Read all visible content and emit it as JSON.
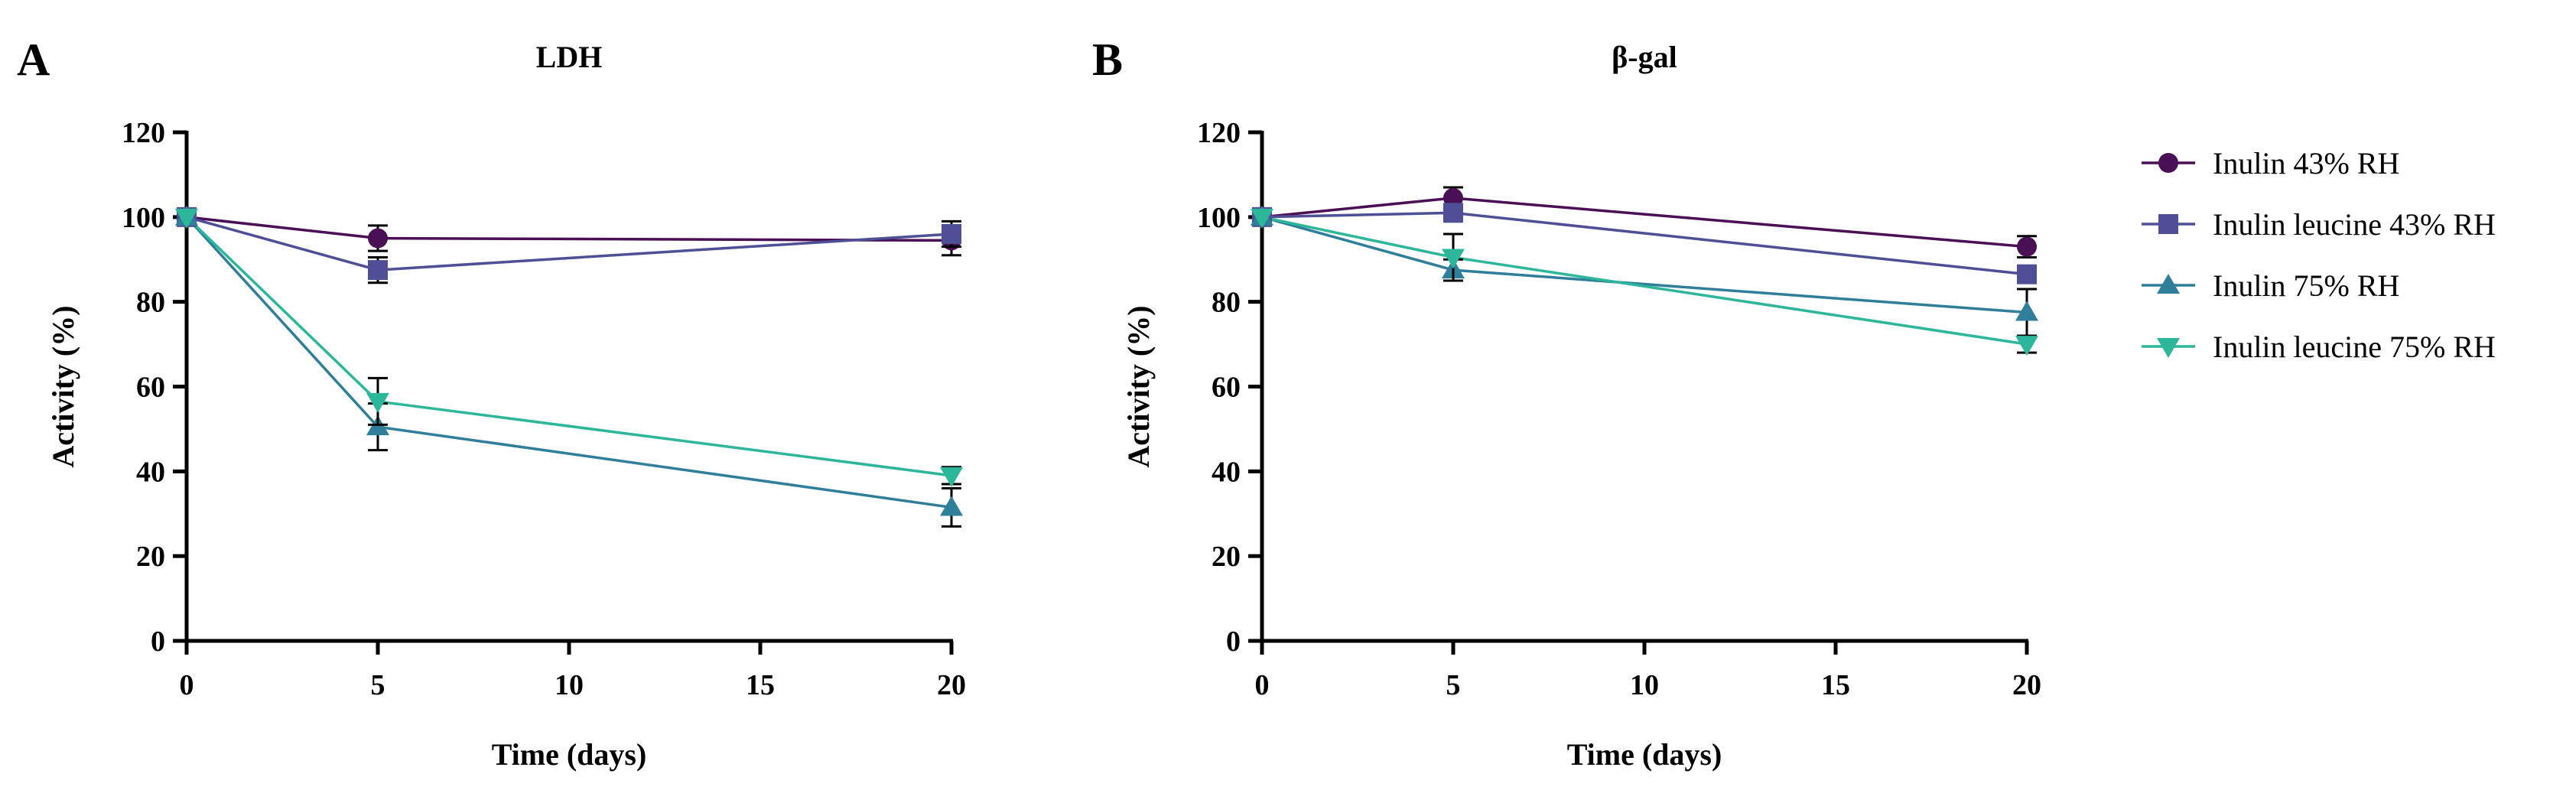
{
  "figure": {
    "legend": [
      {
        "label": "Inulin 43% RH",
        "color": "#4b0f55",
        "marker": "circle"
      },
      {
        "label": "Inulin leucine 43% RH",
        "color": "#4f4f97",
        "marker": "square"
      },
      {
        "label": "Inulin 75% RH",
        "color": "#2f7f9a",
        "marker": "triangle-up"
      },
      {
        "label": "Inulin leucine 75% RH",
        "color": "#2cb79a",
        "marker": "triangle-down"
      }
    ]
  },
  "chart_data": [
    {
      "panel": "A",
      "type": "line",
      "title": "LDH",
      "xlabel": "Time (days)",
      "ylabel": "Activity (%)",
      "xlim": [
        0,
        20
      ],
      "ylim": [
        0,
        120
      ],
      "xticks": [
        0,
        5,
        10,
        15,
        20
      ],
      "yticks": [
        0,
        20,
        40,
        60,
        80,
        100,
        120
      ],
      "series": [
        {
          "name": "Inulin 43% RH",
          "x": [
            0,
            5,
            20
          ],
          "y": [
            100,
            95,
            94.5
          ],
          "err": [
            0,
            3,
            3.5
          ]
        },
        {
          "name": "Inulin leucine 43% RH",
          "x": [
            0,
            5,
            20
          ],
          "y": [
            100,
            87.5,
            96
          ],
          "err": [
            0,
            3,
            3
          ]
        },
        {
          "name": "Inulin 75% RH",
          "x": [
            0,
            5,
            20
          ],
          "y": [
            100,
            50.5,
            31.5
          ],
          "err": [
            0,
            5.5,
            4.5
          ]
        },
        {
          "name": "Inulin leucine 75% RH",
          "x": [
            0,
            5,
            20
          ],
          "y": [
            100,
            56.5,
            39
          ],
          "err": [
            0,
            5.5,
            2
          ]
        }
      ]
    },
    {
      "panel": "B",
      "type": "line",
      "title": "β-gal",
      "xlabel": "Time (days)",
      "ylabel": "Activity (%)",
      "xlim": [
        0,
        20
      ],
      "ylim": [
        0,
        120
      ],
      "xticks": [
        0,
        5,
        10,
        15,
        20
      ],
      "yticks": [
        0,
        20,
        40,
        60,
        80,
        100,
        120
      ],
      "series": [
        {
          "name": "Inulin 43% RH",
          "x": [
            0,
            5,
            20
          ],
          "y": [
            100,
            104.5,
            93
          ],
          "err": [
            0,
            2.5,
            2.5
          ]
        },
        {
          "name": "Inulin leucine 43% RH",
          "x": [
            0,
            5,
            20
          ],
          "y": [
            100,
            101,
            86.5
          ],
          "err": [
            0,
            2,
            2
          ]
        },
        {
          "name": "Inulin 75% RH",
          "x": [
            0,
            5,
            20
          ],
          "y": [
            100,
            87.5,
            77.5
          ],
          "err": [
            0,
            2.5,
            5.5
          ]
        },
        {
          "name": "Inulin leucine 75% RH",
          "x": [
            0,
            5,
            20
          ],
          "y": [
            100,
            90.5,
            70
          ],
          "err": [
            0,
            5.5,
            2
          ]
        }
      ]
    }
  ]
}
